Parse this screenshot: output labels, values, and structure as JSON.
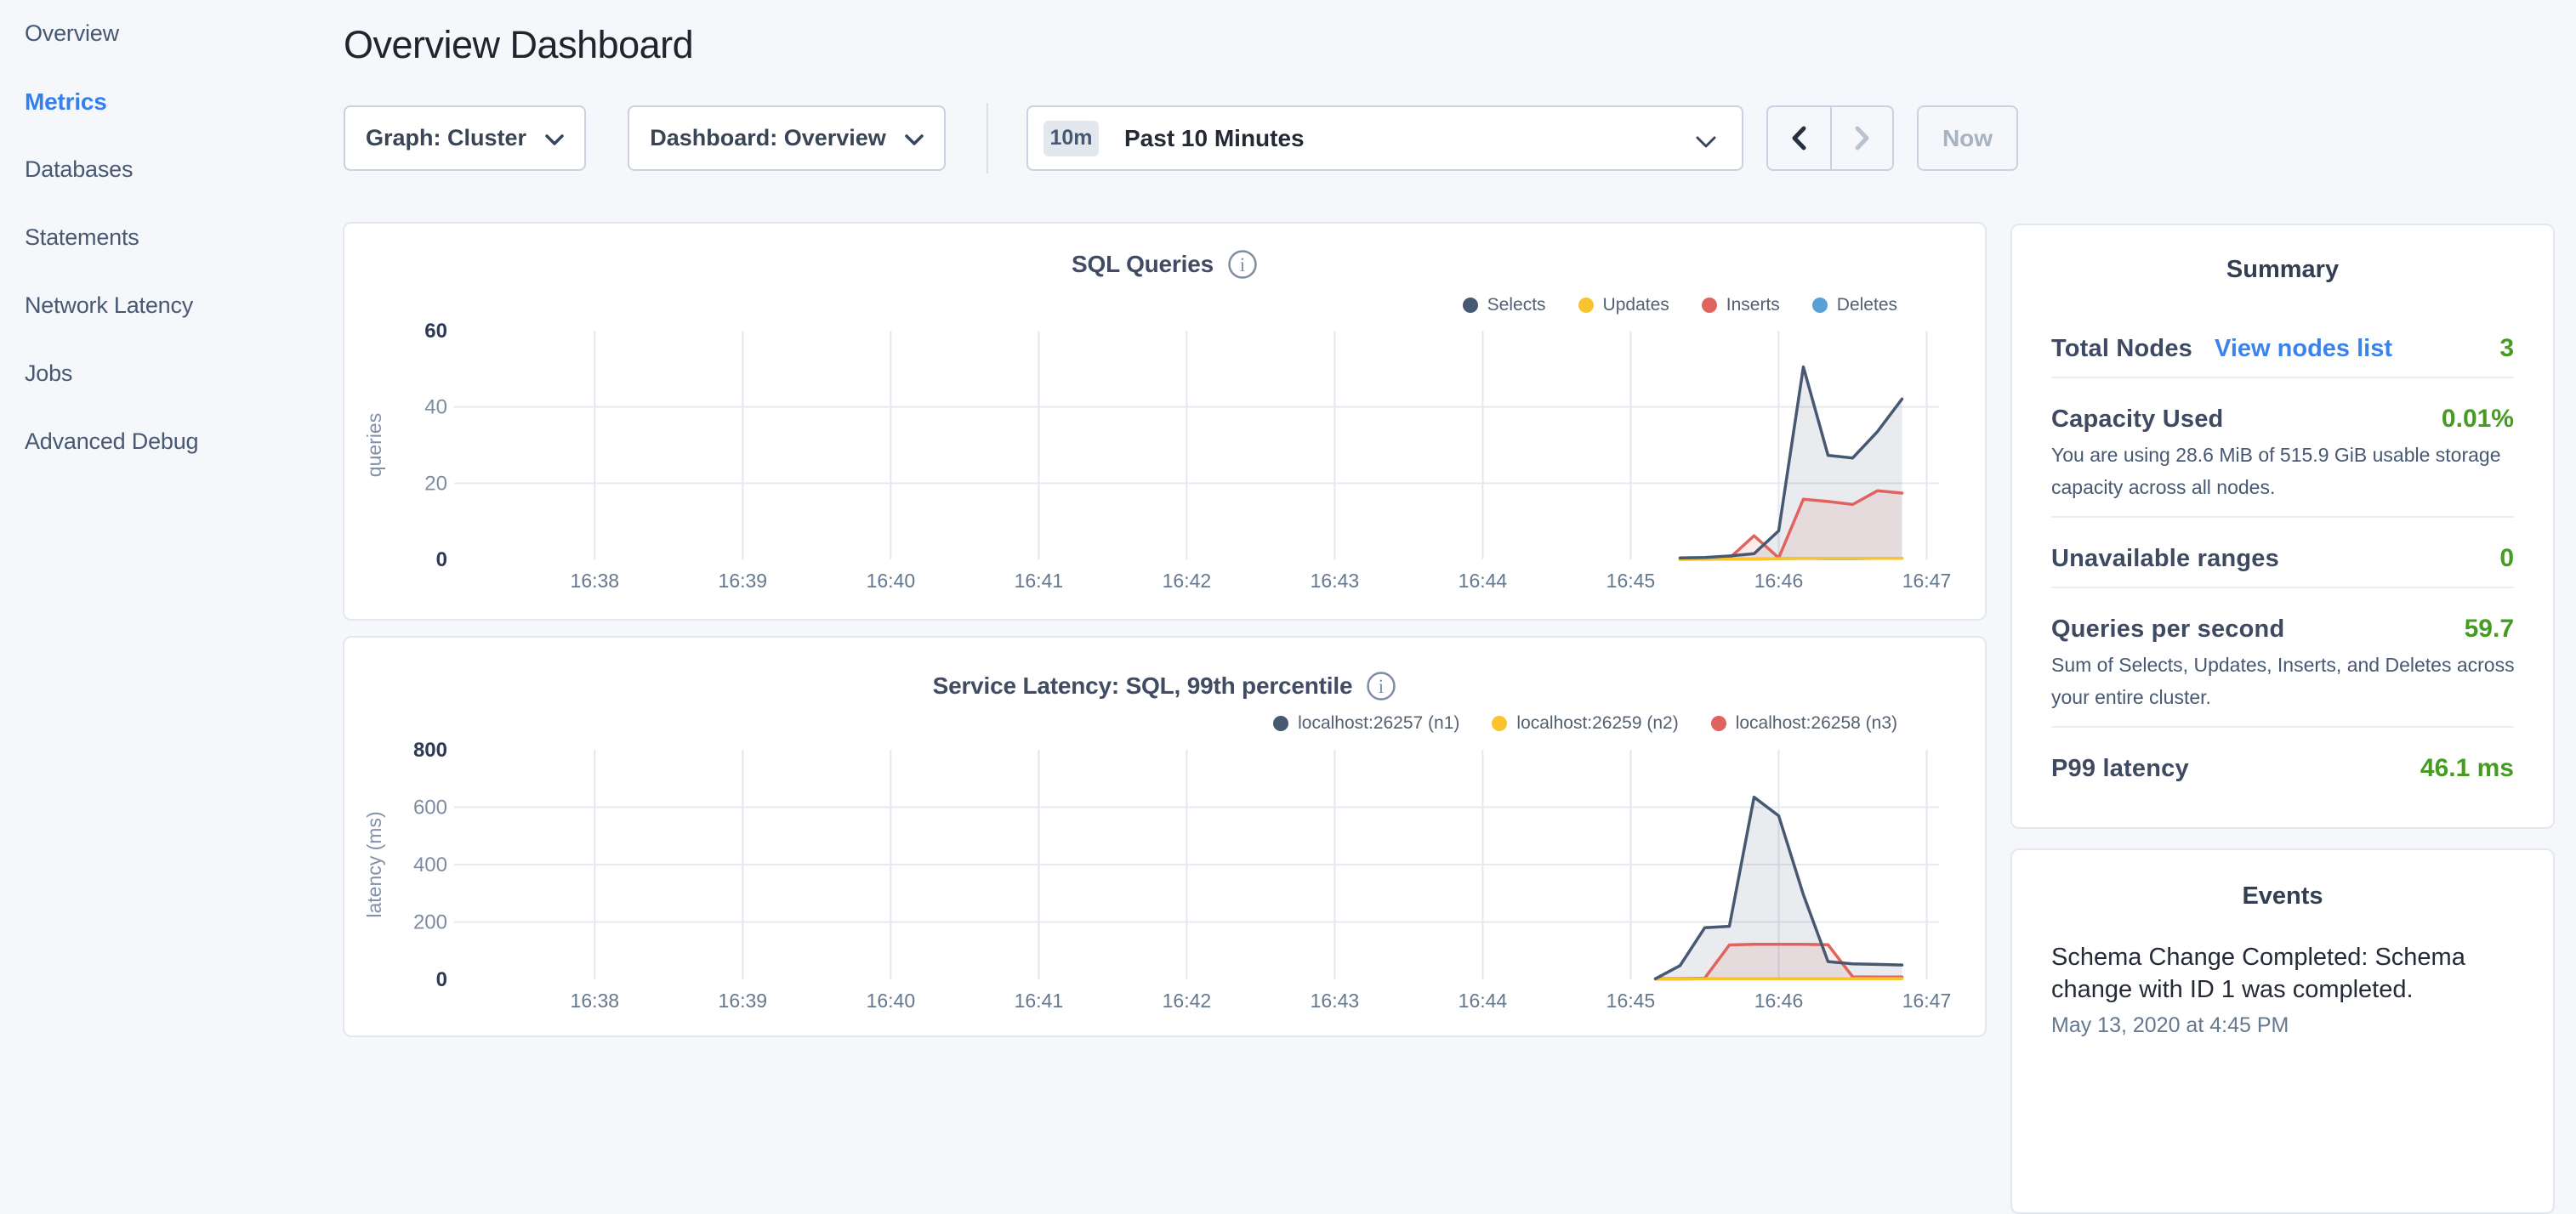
{
  "page": {
    "title": "Overview Dashboard",
    "background": "#f5f7fa"
  },
  "sidebar": {
    "items": [
      {
        "label": "Overview",
        "active": false
      },
      {
        "label": "Metrics",
        "active": true
      },
      {
        "label": "Databases",
        "active": false
      },
      {
        "label": "Statements",
        "active": false
      },
      {
        "label": "Network Latency",
        "active": false
      },
      {
        "label": "Jobs",
        "active": false
      },
      {
        "label": "Advanced Debug",
        "active": false
      }
    ],
    "active_color": "#337fec",
    "item_color": "#475872"
  },
  "controls": {
    "graph_dropdown": {
      "label": "Graph: Cluster"
    },
    "dashboard_dropdown": {
      "label": "Dashboard: Overview"
    },
    "time_window": {
      "badge": "10m",
      "label": "Past 10 Minutes"
    },
    "now_button": {
      "label": "Now",
      "disabled": true
    },
    "prev_button": {
      "icon": "chevron-left",
      "disabled": false
    },
    "next_button": {
      "icon": "chevron-right",
      "disabled": true
    }
  },
  "chart_data": [
    {
      "type": "area",
      "title": "SQL Queries",
      "ylabel": "queries",
      "ylim": [
        0,
        60
      ],
      "yticks": [
        0,
        20,
        40,
        60
      ],
      "x_start": "16:37:03",
      "x_end": "16:47:05",
      "xticks": [
        "16:38",
        "16:39",
        "16:40",
        "16:41",
        "16:42",
        "16:43",
        "16:44",
        "16:45",
        "16:46",
        "16:47"
      ],
      "grid": true,
      "legend_position": "top-right",
      "series": [
        {
          "name": "Selects",
          "color": "#475872",
          "points": [
            [
              "16:45:20",
              0.4
            ],
            [
              "16:45:30",
              0.5
            ],
            [
              "16:45:40",
              0.9
            ],
            [
              "16:45:50",
              1.5
            ],
            [
              "16:46:00",
              7.5
            ],
            [
              "16:46:10",
              50.5
            ],
            [
              "16:46:20",
              27.3
            ],
            [
              "16:46:30",
              26.6
            ],
            [
              "16:46:40",
              33.5
            ],
            [
              "16:46:50",
              42.1
            ]
          ]
        },
        {
          "name": "Updates",
          "color": "#f9c32f",
          "points": [
            [
              "16:45:20",
              0.05
            ],
            [
              "16:45:30",
              0.05
            ],
            [
              "16:45:40",
              0.1
            ],
            [
              "16:45:50",
              0.1
            ],
            [
              "16:46:00",
              0.2
            ],
            [
              "16:46:10",
              0.3
            ],
            [
              "16:46:20",
              0.3
            ],
            [
              "16:46:30",
              0.3
            ],
            [
              "16:46:40",
              0.3
            ],
            [
              "16:46:50",
              0.3
            ]
          ]
        },
        {
          "name": "Inserts",
          "color": "#e0635d",
          "points": [
            [
              "16:45:20",
              0.0
            ],
            [
              "16:45:30",
              0.1
            ],
            [
              "16:45:40",
              0.3
            ],
            [
              "16:45:50",
              6.2
            ],
            [
              "16:46:00",
              0.4
            ],
            [
              "16:46:10",
              15.8
            ],
            [
              "16:46:20",
              15.2
            ],
            [
              "16:46:30",
              14.4
            ],
            [
              "16:46:40",
              18.0
            ],
            [
              "16:46:50",
              17.4
            ]
          ]
        },
        {
          "name": "Deletes",
          "color": "#57a1d6",
          "points": [
            [
              "16:45:20",
              0.05
            ],
            [
              "16:45:30",
              0.05
            ],
            [
              "16:45:40",
              0.1
            ],
            [
              "16:45:50",
              0.1
            ],
            [
              "16:46:00",
              0.2
            ],
            [
              "16:46:10",
              0.3
            ],
            [
              "16:46:20",
              0.2
            ],
            [
              "16:46:30",
              0.2
            ],
            [
              "16:46:40",
              0.3
            ],
            [
              "16:46:50",
              0.3
            ]
          ]
        }
      ]
    },
    {
      "type": "area",
      "title": "Service Latency: SQL, 99th percentile",
      "ylabel": "latency (ms)",
      "ylim": [
        0,
        800
      ],
      "yticks": [
        0,
        200,
        400,
        600,
        800
      ],
      "x_start": "16:37:03",
      "x_end": "16:47:05",
      "xticks": [
        "16:38",
        "16:39",
        "16:40",
        "16:41",
        "16:42",
        "16:43",
        "16:44",
        "16:45",
        "16:46",
        "16:47"
      ],
      "grid": true,
      "legend_position": "top-right",
      "series": [
        {
          "name": "localhost:26257 (n1)",
          "color": "#475872",
          "points": [
            [
              "16:45:10",
              2
            ],
            [
              "16:45:20",
              48
            ],
            [
              "16:45:30",
              180
            ],
            [
              "16:45:40",
              185
            ],
            [
              "16:45:50",
              635
            ],
            [
              "16:46:00",
              570
            ],
            [
              "16:46:10",
              295
            ],
            [
              "16:46:20",
              62
            ],
            [
              "16:46:30",
              54
            ],
            [
              "16:46:40",
              52
            ],
            [
              "16:46:50",
              50
            ]
          ]
        },
        {
          "name": "localhost:26259 (n2)",
          "color": "#f9c32f",
          "points": [
            [
              "16:45:10",
              1
            ],
            [
              "16:45:20",
              1
            ],
            [
              "16:45:30",
              2
            ],
            [
              "16:45:40",
              2
            ],
            [
              "16:45:50",
              2
            ],
            [
              "16:46:00",
              2
            ],
            [
              "16:46:10",
              2
            ],
            [
              "16:46:20",
              2
            ],
            [
              "16:46:30",
              2
            ],
            [
              "16:46:40",
              2
            ],
            [
              "16:46:50",
              2
            ]
          ]
        },
        {
          "name": "localhost:26258 (n3)",
          "color": "#e0635d",
          "points": [
            [
              "16:45:10",
              2
            ],
            [
              "16:45:20",
              2
            ],
            [
              "16:45:30",
              4
            ],
            [
              "16:45:40",
              120
            ],
            [
              "16:45:50",
              122
            ],
            [
              "16:46:00",
              122
            ],
            [
              "16:46:10",
              122
            ],
            [
              "16:46:20",
              121
            ],
            [
              "16:46:30",
              9
            ],
            [
              "16:46:40",
              8
            ],
            [
              "16:46:50",
              8
            ]
          ]
        }
      ]
    }
  ],
  "summary": {
    "title": "Summary",
    "rows": [
      {
        "label": "Total Nodes",
        "link": "View nodes list",
        "value": "3",
        "description": ""
      },
      {
        "label": "Capacity Used",
        "link": "",
        "value": "0.01%",
        "description": "You are using 28.6 MiB of 515.9 GiB usable storage\ncapacity across all nodes."
      },
      {
        "label": "Unavailable ranges",
        "link": "",
        "value": "0",
        "description": ""
      },
      {
        "label": "Queries per second",
        "link": "",
        "value": "59.7",
        "description": "Sum of Selects, Updates, Inserts, and Deletes across\nyour entire cluster."
      },
      {
        "label": "P99 latency",
        "link": "",
        "value": "46.1 ms",
        "description": ""
      }
    ],
    "value_color": "#469c23",
    "link_color": "#3b82ea"
  },
  "events": {
    "title": "Events",
    "items": [
      {
        "text": "Schema Change Completed: Schema\nchange with ID 1 was completed.",
        "timestamp": "May 13, 2020 at 4:45 PM"
      }
    ]
  }
}
